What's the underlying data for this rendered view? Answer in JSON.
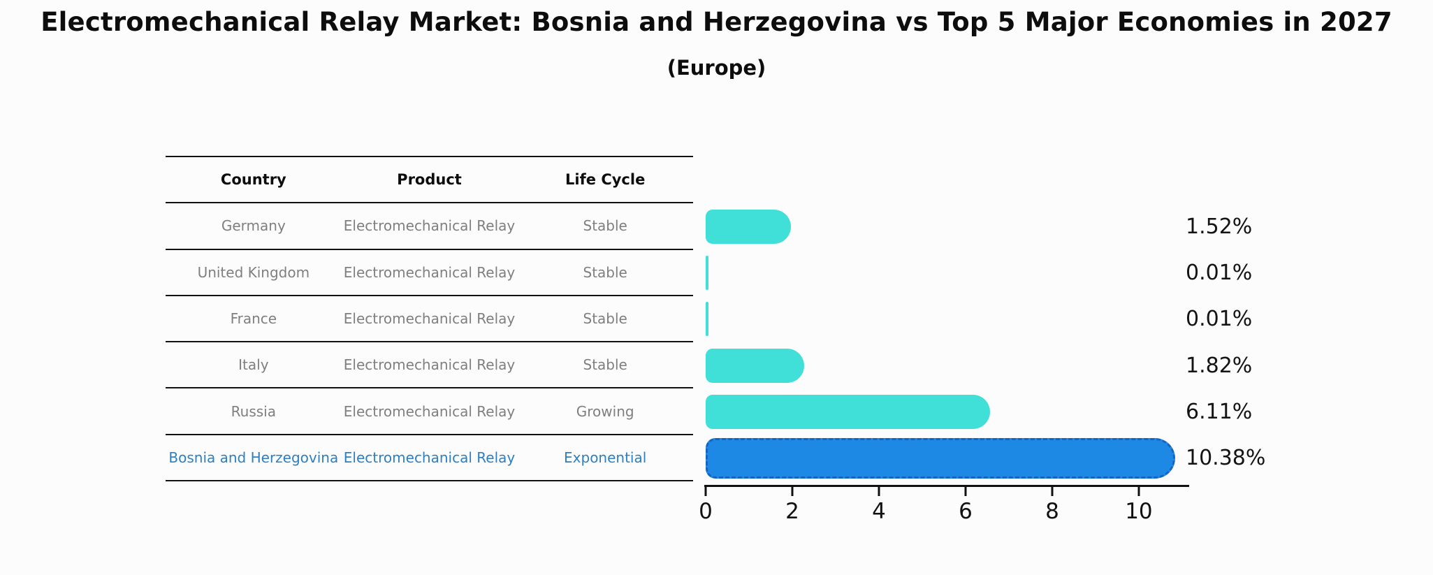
{
  "title": "Electromechanical Relay Market: Bosnia and Herzegovina vs Top 5 Major Economies in 2027",
  "subtitle": "(Europe)",
  "table": {
    "headers": [
      "Country",
      "Product",
      "Life Cycle"
    ],
    "rows": [
      {
        "country": "Germany",
        "product": "Electromechanical Relay",
        "life_cycle": "Stable"
      },
      {
        "country": "United Kingdom",
        "product": "Electromechanical Relay",
        "life_cycle": "Stable"
      },
      {
        "country": "France",
        "product": "Electromechanical Relay",
        "life_cycle": "Stable"
      },
      {
        "country": "Italy",
        "product": "Electromechanical Relay",
        "life_cycle": "Stable"
      },
      {
        "country": "Russia",
        "product": "Electromechanical Relay",
        "life_cycle": "Growing"
      },
      {
        "country": "Bosnia and Herzegovina",
        "product": "Electromechanical Relay",
        "life_cycle": "Exponential"
      }
    ]
  },
  "chart_data": {
    "type": "bar",
    "orientation": "horizontal",
    "title": "Electromechanical Relay Market: Bosnia and Herzegovina vs Top 5 Major Economies in 2027",
    "subtitle": "(Europe)",
    "categories": [
      "Germany",
      "United Kingdom",
      "France",
      "Italy",
      "Russia",
      "Bosnia and Herzegovina"
    ],
    "values": [
      1.52,
      0.01,
      0.01,
      1.82,
      6.11,
      10.38
    ],
    "value_labels": [
      "1.52%",
      "0.01%",
      "0.01%",
      "1.82%",
      "6.11%",
      "10.38%"
    ],
    "xticks": [
      "0",
      "2",
      "4",
      "6",
      "8",
      "10"
    ],
    "xlim": [
      0,
      11.13
    ],
    "grid": false,
    "legend": false,
    "highlight_index": 5,
    "bar_color": "#40E0D8",
    "highlight_color": "#1E88E5",
    "highlight_edge_color": "#1565C0"
  },
  "colors": {
    "title": "#0d0d0d",
    "table_text": "#7f7f7f",
    "highlight_text": "#2d7fc1",
    "axis": "#111111",
    "background": "#fdfcfc"
  }
}
